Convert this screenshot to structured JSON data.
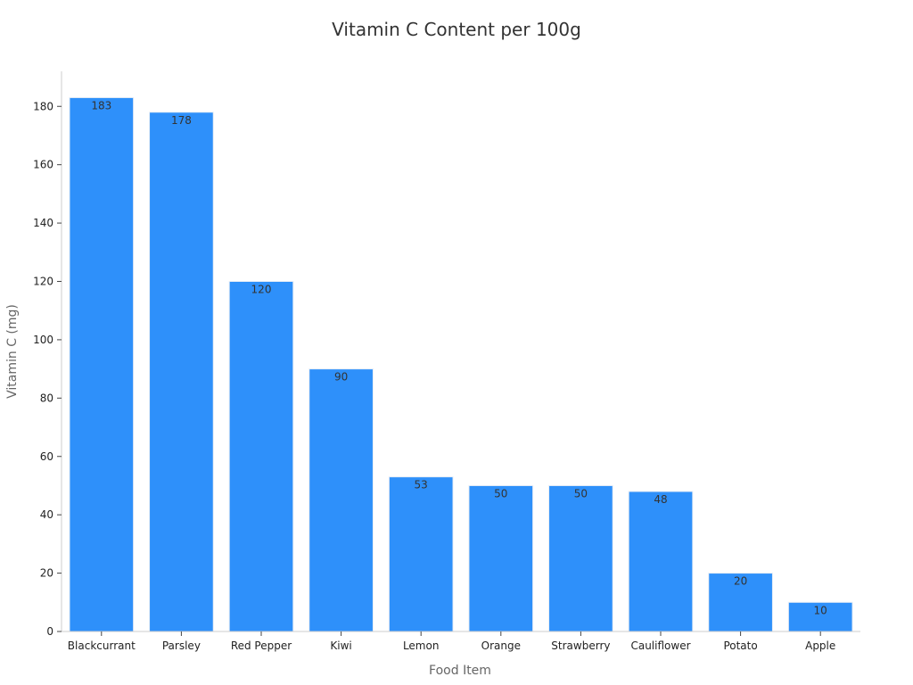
{
  "chart_data": {
    "type": "bar",
    "title": "Vitamin C Content per 100g",
    "xlabel": "Food Item",
    "ylabel": "Vitamin C (mg)",
    "categories": [
      "Blackcurrant",
      "Parsley",
      "Red Pepper",
      "Kiwi",
      "Lemon",
      "Orange",
      "Strawberry",
      "Cauliflower",
      "Potato",
      "Apple"
    ],
    "values": [
      183,
      178,
      120,
      90,
      53,
      50,
      50,
      48,
      20,
      10
    ],
    "data_labels": [
      "183",
      "178",
      "120",
      "90",
      "53",
      "50",
      "50",
      "48",
      "20",
      "10"
    ],
    "yticks": [
      0,
      20,
      40,
      60,
      80,
      100,
      120,
      140,
      160,
      180
    ],
    "ytick_labels": [
      "0",
      "20",
      "40",
      "60",
      "80",
      "100",
      "120",
      "140",
      "160",
      "180"
    ],
    "ylim": [
      0,
      192
    ],
    "grid": false,
    "legend": "none",
    "bar_color": "#2e90fa",
    "bar_edge_color": "#e8eef6"
  }
}
